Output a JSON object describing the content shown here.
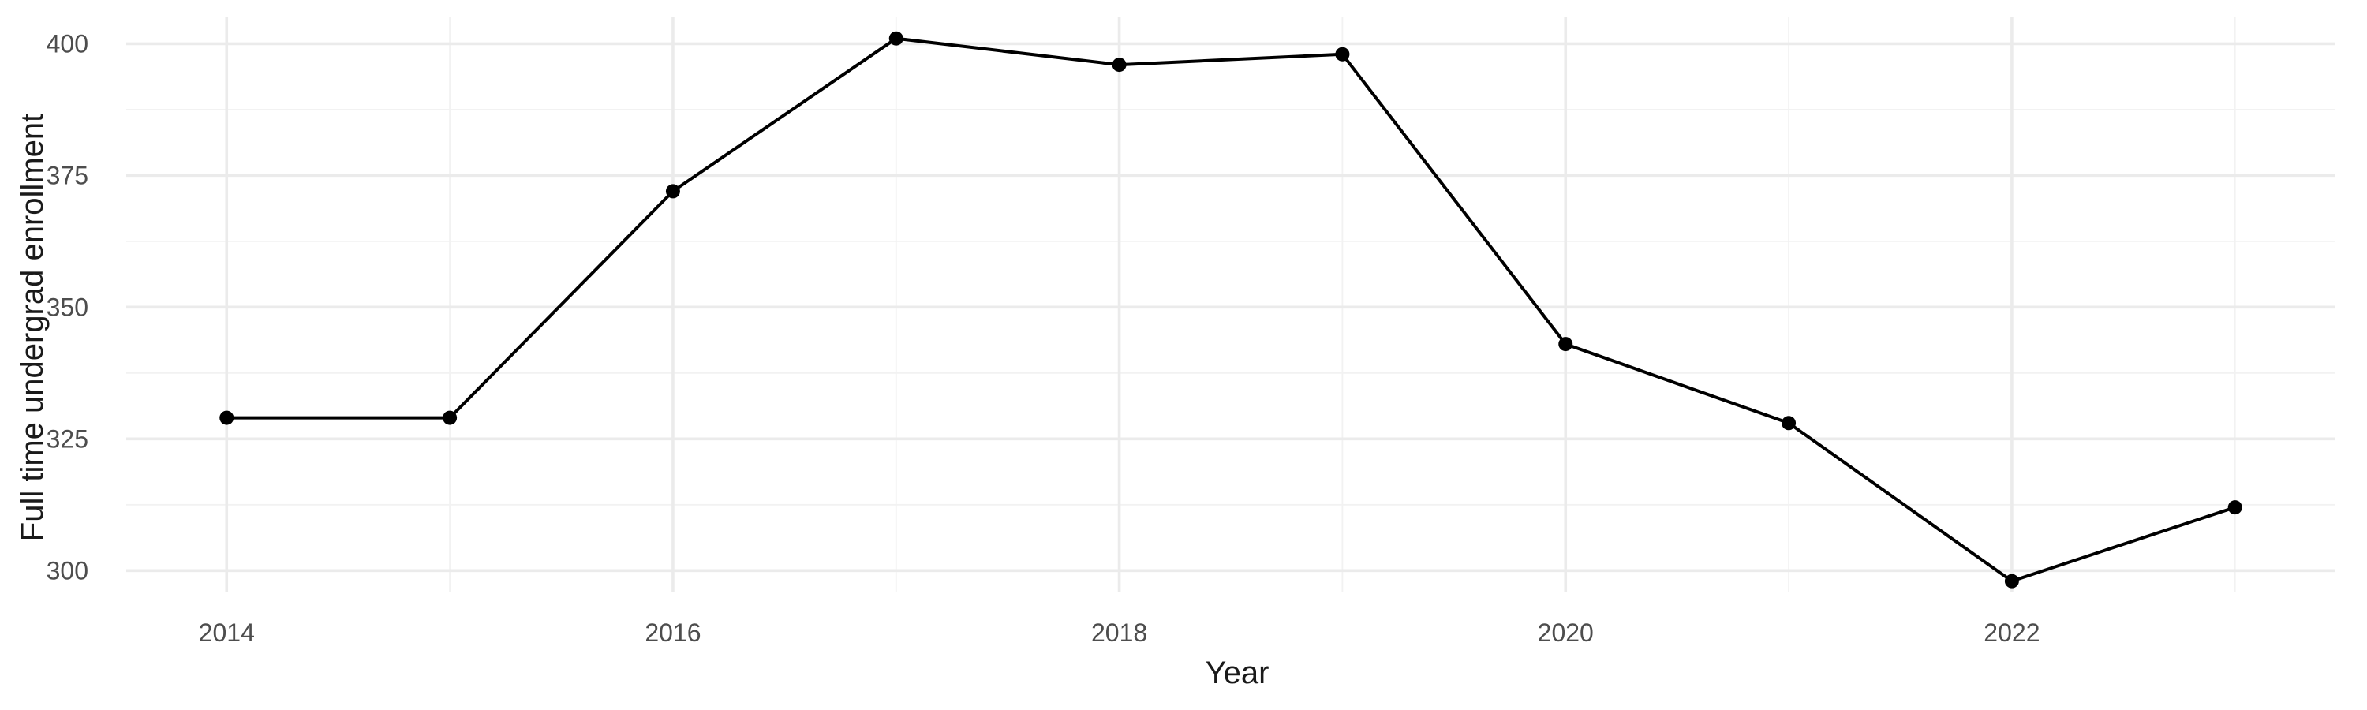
{
  "chart_data": {
    "type": "line",
    "title": "",
    "xlabel": "Year",
    "ylabel": "Full time undergrad enrollment",
    "x": [
      2014,
      2015,
      2016,
      2017,
      2018,
      2019,
      2020,
      2021,
      2022,
      2023
    ],
    "series": [
      {
        "values": [
          329,
          329,
          372,
          401,
          396,
          398,
          343,
          328,
          298,
          312
        ]
      }
    ],
    "xlim": [
      2013.55,
      2023.45
    ],
    "ylim": [
      296,
      405
    ],
    "x_ticks": [
      "2014",
      "2016",
      "2018",
      "2020",
      "2022"
    ],
    "y_ticks": [
      "300",
      "325",
      "350",
      "375",
      "400"
    ],
    "grid": true,
    "legend": "none",
    "colors": {
      "series": "#000000",
      "grid_major": "#ebebeb",
      "grid_minor": "#f2f2f2"
    }
  }
}
